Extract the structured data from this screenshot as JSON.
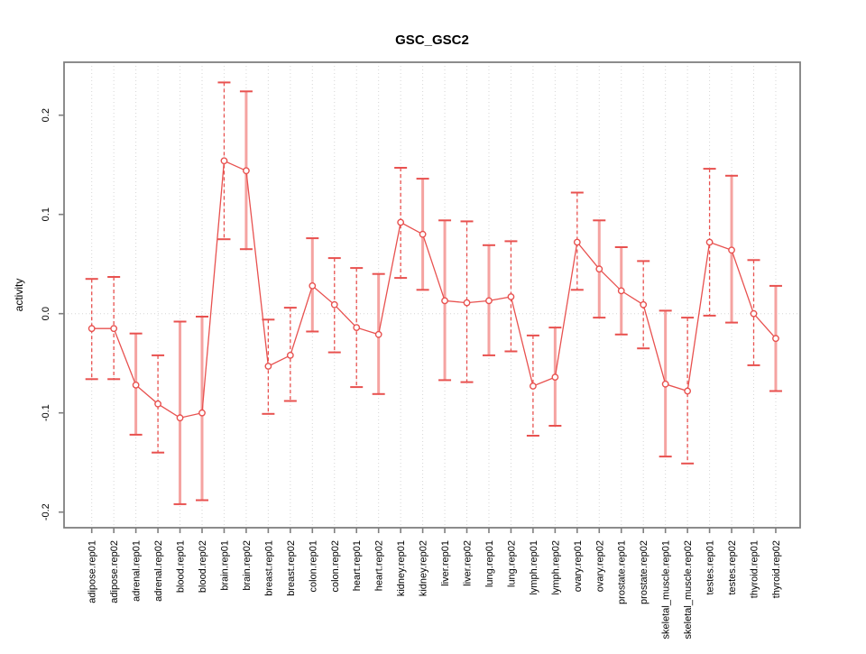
{
  "window": {
    "background": "#ffffff"
  },
  "chart_data": {
    "type": "line",
    "title": "GSC_GSC2",
    "xlabel": "",
    "ylabel": "activity",
    "ylim": [
      -0.216,
      0.253
    ],
    "ytick_values": [
      -0.2,
      -0.1,
      0.0,
      0.1,
      0.2
    ],
    "ytick_labels": [
      "-0.2",
      "-0.1",
      "0.0",
      "0.1",
      "0.2"
    ],
    "grid": "dotted vertical line per category; dotted horizontal line at zero",
    "legend_position": "none",
    "marker": "open-circle",
    "categories": [
      "adipose.rep01",
      "adipose.rep02",
      "adrenal.rep01",
      "adrenal.rep02",
      "blood.rep01",
      "blood.rep02",
      "brain.rep01",
      "brain.rep02",
      "breast.rep01",
      "breast.rep02",
      "colon.rep01",
      "colon.rep02",
      "heart.rep01",
      "heart.rep02",
      "kidney.rep01",
      "kidney.rep02",
      "liver.rep01",
      "liver.rep02",
      "lung.rep01",
      "lung.rep02",
      "lymph.rep01",
      "lymph.rep02",
      "ovary.rep01",
      "ovary.rep02",
      "prostate.rep01",
      "prostate.rep02",
      "skeletal_muscle.rep01",
      "skeletal_muscle.rep02",
      "testes.rep01",
      "testes.rep02",
      "thyroid.rep01",
      "thyroid.rep02"
    ],
    "series": [
      {
        "name": "activity",
        "values": [
          -0.015,
          -0.015,
          -0.072,
          -0.091,
          -0.105,
          -0.1,
          0.154,
          0.144,
          -0.053,
          -0.042,
          0.028,
          0.009,
          -0.014,
          -0.021,
          0.092,
          0.08,
          0.013,
          0.011,
          0.013,
          0.017,
          -0.073,
          -0.064,
          0.072,
          0.045,
          0.023,
          0.009,
          -0.071,
          -0.078,
          0.072,
          0.064,
          0.0,
          -0.025
        ],
        "err_hi": [
          0.035,
          0.037,
          -0.02,
          -0.042,
          -0.008,
          -0.003,
          0.233,
          0.224,
          -0.006,
          0.006,
          0.076,
          0.056,
          0.046,
          0.04,
          0.147,
          0.136,
          0.094,
          0.093,
          0.069,
          0.073,
          -0.022,
          -0.014,
          0.122,
          0.094,
          0.067,
          0.053,
          0.003,
          -0.004,
          0.146,
          0.139,
          0.054,
          0.028
        ],
        "err_lo": [
          -0.066,
          -0.066,
          -0.122,
          -0.14,
          -0.192,
          -0.188,
          0.075,
          0.065,
          -0.101,
          -0.088,
          -0.018,
          -0.039,
          -0.074,
          -0.081,
          0.036,
          0.024,
          -0.067,
          -0.069,
          -0.042,
          -0.038,
          -0.123,
          -0.113,
          0.024,
          -0.004,
          -0.021,
          -0.035,
          -0.144,
          -0.151,
          -0.002,
          -0.009,
          -0.052,
          -0.078
        ],
        "bar_styles": [
          "dashed",
          "dashed",
          "solid",
          "dashed",
          "solid",
          "solid",
          "dashed",
          "solid",
          "dashed",
          "dashed",
          "solid",
          "dashed",
          "dashed",
          "solid",
          "dashed",
          "solid",
          "solid",
          "dashed",
          "solid",
          "dashed",
          "dashed",
          "solid",
          "dashed",
          "solid",
          "solid",
          "dashed",
          "solid",
          "dashed",
          "dashed",
          "solid",
          "dashed",
          "solid"
        ]
      }
    ]
  },
  "colors": {
    "series_red": "#e8514f",
    "error_stem_pink": "#f5a3a1",
    "grid_gray": "#d6d6d6",
    "axis_gray": "#7f7f7f",
    "text_black": "#000000",
    "marker_fill": "#ffffff"
  }
}
